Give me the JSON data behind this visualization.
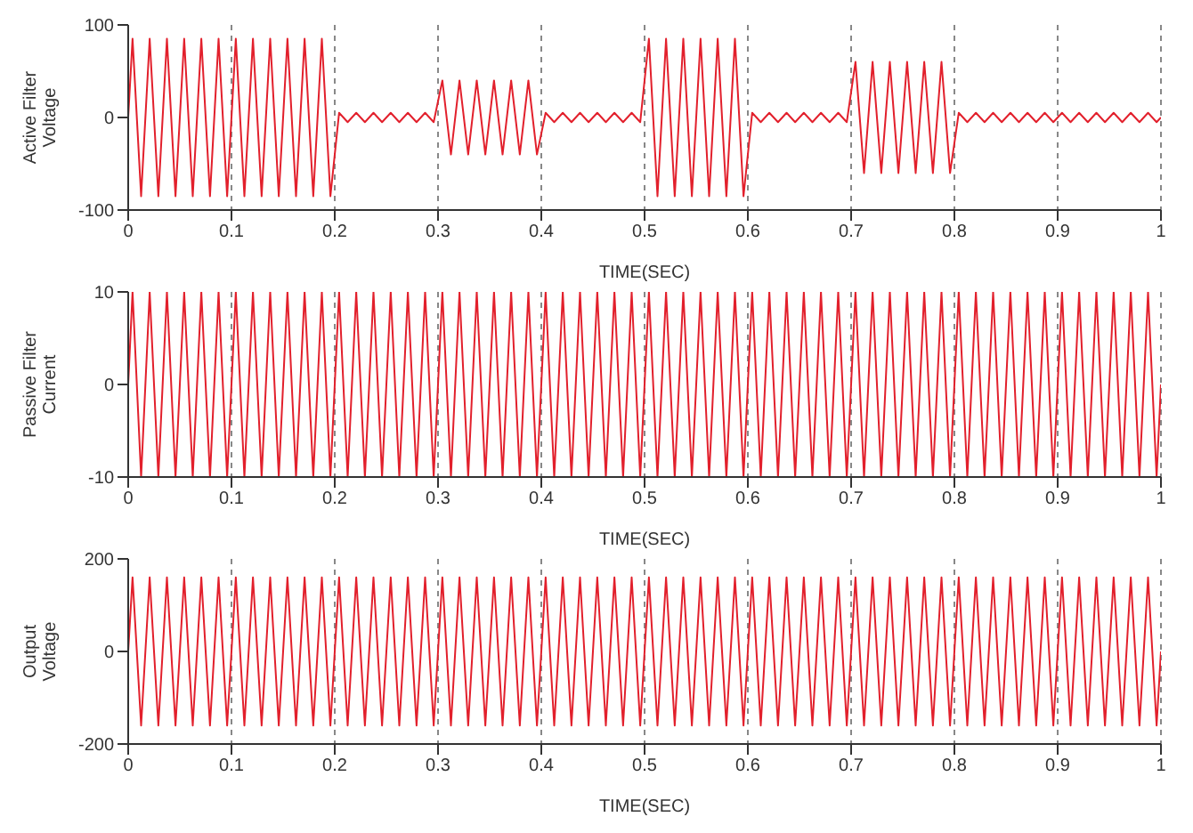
{
  "chart_data": [
    {
      "type": "line",
      "ylabel": "Active Filter Voltage",
      "xlabel": "TIME(SEC)",
      "color": "#e2202c",
      "grid": "x",
      "xlim": [
        0,
        1
      ],
      "xticks": [
        0,
        0.1,
        0.2,
        0.3,
        0.4,
        0.5,
        0.6,
        0.7,
        0.8,
        0.9,
        1
      ],
      "ylim": [
        -100,
        100
      ],
      "yticks": [
        -100,
        0,
        100
      ],
      "x": [
        0,
        0.0042,
        0.0125,
        0.0208,
        0.0292,
        0.0375,
        0.0458,
        0.0542,
        0.0625,
        0.0708,
        0.0792,
        0.0875,
        0.0958,
        0.1042,
        0.1125,
        0.1208,
        0.1292,
        0.1375,
        0.1458,
        0.1542,
        0.1625,
        0.1708,
        0.1792,
        0.1875,
        0.1958,
        0.2042,
        0.2125,
        0.2208,
        0.2292,
        0.2375,
        0.2458,
        0.2542,
        0.2625,
        0.2708,
        0.2792,
        0.2875,
        0.2958,
        0.3042,
        0.3125,
        0.3208,
        0.3292,
        0.3375,
        0.3458,
        0.3542,
        0.3625,
        0.3708,
        0.3792,
        0.3875,
        0.3958,
        0.4042,
        0.4125,
        0.4208,
        0.4292,
        0.4375,
        0.4458,
        0.4542,
        0.4625,
        0.4708,
        0.4792,
        0.4875,
        0.4958,
        0.5042,
        0.5125,
        0.5208,
        0.5292,
        0.5375,
        0.5458,
        0.5542,
        0.5625,
        0.5708,
        0.5792,
        0.5875,
        0.5958,
        0.6042,
        0.6125,
        0.6208,
        0.6292,
        0.6375,
        0.6458,
        0.6542,
        0.6625,
        0.6708,
        0.6792,
        0.6875,
        0.6958,
        0.7042,
        0.7125,
        0.7208,
        0.7292,
        0.7375,
        0.7458,
        0.7542,
        0.7625,
        0.7708,
        0.7792,
        0.7875,
        0.7958,
        0.8042,
        0.8125,
        0.8208,
        0.8292,
        0.8375,
        0.8458,
        0.8542,
        0.8625,
        0.8708,
        0.8792,
        0.8875,
        0.8958,
        0.9042,
        0.9125,
        0.9208,
        0.9292,
        0.9375,
        0.9458,
        0.9542,
        0.9625,
        0.9708,
        0.9792,
        0.9875,
        0.9958,
        1
      ],
      "values": [
        0,
        85,
        -85,
        85,
        -85,
        85,
        -85,
        85,
        -85,
        85,
        -85,
        85,
        -85,
        85,
        -85,
        85,
        -85,
        85,
        -85,
        85,
        -85,
        85,
        -85,
        85,
        -85,
        5,
        -5,
        5,
        -5,
        5,
        -5,
        5,
        -5,
        5,
        -5,
        5,
        -5,
        40,
        -40,
        40,
        -40,
        40,
        -40,
        40,
        -40,
        40,
        -40,
        40,
        -40,
        5,
        -5,
        5,
        -5,
        5,
        -5,
        5,
        -5,
        5,
        -5,
        5,
        -5,
        85,
        -85,
        85,
        -85,
        85,
        -85,
        85,
        -85,
        85,
        -85,
        85,
        -85,
        5,
        -5,
        5,
        -5,
        5,
        -5,
        5,
        -5,
        5,
        -5,
        5,
        -5,
        60,
        -60,
        60,
        -60,
        60,
        -60,
        60,
        -60,
        60,
        -60,
        60,
        -60,
        5,
        -5,
        5,
        -5,
        5,
        -5,
        5,
        -5,
        5,
        -5,
        5,
        -5,
        5,
        -5,
        5,
        -5,
        5,
        -5,
        5,
        -5,
        5,
        -5,
        5,
        -5,
        0
      ]
    },
    {
      "type": "line",
      "ylabel": "Passive Filter Current",
      "xlabel": "TIME(SEC)",
      "color": "#e2202c",
      "grid": "x",
      "xlim": [
        0,
        1
      ],
      "xticks": [
        0,
        0.1,
        0.2,
        0.3,
        0.4,
        0.5,
        0.6,
        0.7,
        0.8,
        0.9,
        1
      ],
      "ylim": [
        -10,
        10
      ],
      "yticks": [
        -10,
        0,
        10
      ],
      "x": [
        0,
        0.0042,
        0.0125,
        0.0208,
        0.0292,
        0.0375,
        0.0458,
        0.0542,
        0.0625,
        0.0708,
        0.0792,
        0.0875,
        0.0958,
        0.1042,
        0.1125,
        0.1208,
        0.1292,
        0.1375,
        0.1458,
        0.1542,
        0.1625,
        0.1708,
        0.1792,
        0.1875,
        0.1958,
        0.2042,
        0.2125,
        0.2208,
        0.2292,
        0.2375,
        0.2458,
        0.2542,
        0.2625,
        0.2708,
        0.2792,
        0.2875,
        0.2958,
        0.3042,
        0.3125,
        0.3208,
        0.3292,
        0.3375,
        0.3458,
        0.3542,
        0.3625,
        0.3708,
        0.3792,
        0.3875,
        0.3958,
        0.4042,
        0.4125,
        0.4208,
        0.4292,
        0.4375,
        0.4458,
        0.4542,
        0.4625,
        0.4708,
        0.4792,
        0.4875,
        0.4958,
        0.5042,
        0.5125,
        0.5208,
        0.5292,
        0.5375,
        0.5458,
        0.5542,
        0.5625,
        0.5708,
        0.5792,
        0.5875,
        0.5958,
        0.6042,
        0.6125,
        0.6208,
        0.6292,
        0.6375,
        0.6458,
        0.6542,
        0.6625,
        0.6708,
        0.6792,
        0.6875,
        0.6958,
        0.7042,
        0.7125,
        0.7208,
        0.7292,
        0.7375,
        0.7458,
        0.7542,
        0.7625,
        0.7708,
        0.7792,
        0.7875,
        0.7958,
        0.8042,
        0.8125,
        0.8208,
        0.8292,
        0.8375,
        0.8458,
        0.8542,
        0.8625,
        0.8708,
        0.8792,
        0.8875,
        0.8958,
        0.9042,
        0.9125,
        0.9208,
        0.9292,
        0.9375,
        0.9458,
        0.9542,
        0.9625,
        0.9708,
        0.9792,
        0.9875,
        0.9958,
        1
      ],
      "values": [
        0,
        10,
        -10,
        10,
        -10,
        10,
        -10,
        10,
        -10,
        10,
        -10,
        10,
        -10,
        10,
        -10,
        10,
        -10,
        10,
        -10,
        10,
        -10,
        10,
        -10,
        10,
        -10,
        10,
        -10,
        10,
        -10,
        10,
        -10,
        10,
        -10,
        10,
        -10,
        10,
        -10,
        10,
        -10,
        10,
        -10,
        10,
        -10,
        10,
        -10,
        10,
        -10,
        10,
        -10,
        10,
        -10,
        10,
        -10,
        10,
        -10,
        10,
        -10,
        10,
        -10,
        10,
        -10,
        10,
        -10,
        10,
        -10,
        10,
        -10,
        10,
        -10,
        10,
        -10,
        10,
        -10,
        10,
        -10,
        10,
        -10,
        10,
        -10,
        10,
        -10,
        10,
        -10,
        10,
        -10,
        10,
        -10,
        10,
        -10,
        10,
        -10,
        10,
        -10,
        10,
        -10,
        10,
        -10,
        10,
        -10,
        10,
        -10,
        10,
        -10,
        10,
        -10,
        10,
        -10,
        10,
        -10,
        10,
        -10,
        10,
        -10,
        10,
        -10,
        10,
        -10,
        10,
        -10,
        10,
        -10,
        0
      ]
    },
    {
      "type": "line",
      "ylabel": "Output Voltage",
      "xlabel": "TIME(SEC)",
      "color": "#e2202c",
      "grid": "x",
      "xlim": [
        0,
        1
      ],
      "xticks": [
        0,
        0.1,
        0.2,
        0.3,
        0.4,
        0.5,
        0.6,
        0.7,
        0.8,
        0.9,
        1
      ],
      "ylim": [
        -200,
        200
      ],
      "yticks": [
        -200,
        0,
        200
      ],
      "x": [
        0,
        0.0042,
        0.0125,
        0.0208,
        0.0292,
        0.0375,
        0.0458,
        0.0542,
        0.0625,
        0.0708,
        0.0792,
        0.0875,
        0.0958,
        0.1042,
        0.1125,
        0.1208,
        0.1292,
        0.1375,
        0.1458,
        0.1542,
        0.1625,
        0.1708,
        0.1792,
        0.1875,
        0.1958,
        0.2042,
        0.2125,
        0.2208,
        0.2292,
        0.2375,
        0.2458,
        0.2542,
        0.2625,
        0.2708,
        0.2792,
        0.2875,
        0.2958,
        0.3042,
        0.3125,
        0.3208,
        0.3292,
        0.3375,
        0.3458,
        0.3542,
        0.3625,
        0.3708,
        0.3792,
        0.3875,
        0.3958,
        0.4042,
        0.4125,
        0.4208,
        0.4292,
        0.4375,
        0.4458,
        0.4542,
        0.4625,
        0.4708,
        0.4792,
        0.4875,
        0.4958,
        0.5042,
        0.5125,
        0.5208,
        0.5292,
        0.5375,
        0.5458,
        0.5542,
        0.5625,
        0.5708,
        0.5792,
        0.5875,
        0.5958,
        0.6042,
        0.6125,
        0.6208,
        0.6292,
        0.6375,
        0.6458,
        0.6542,
        0.6625,
        0.6708,
        0.6792,
        0.6875,
        0.6958,
        0.7042,
        0.7125,
        0.7208,
        0.7292,
        0.7375,
        0.7458,
        0.7542,
        0.7625,
        0.7708,
        0.7792,
        0.7875,
        0.7958,
        0.8042,
        0.8125,
        0.8208,
        0.8292,
        0.8375,
        0.8458,
        0.8542,
        0.8625,
        0.8708,
        0.8792,
        0.8875,
        0.8958,
        0.9042,
        0.9125,
        0.9208,
        0.9292,
        0.9375,
        0.9458,
        0.9542,
        0.9625,
        0.9708,
        0.9792,
        0.9875,
        0.9958,
        1
      ],
      "values": [
        0,
        160,
        -160,
        160,
        -160,
        160,
        -160,
        160,
        -160,
        160,
        -160,
        160,
        -160,
        160,
        -160,
        160,
        -160,
        160,
        -160,
        160,
        -160,
        160,
        -160,
        160,
        -160,
        160,
        -160,
        160,
        -160,
        160,
        -160,
        160,
        -160,
        160,
        -160,
        160,
        -160,
        160,
        -160,
        160,
        -160,
        160,
        -160,
        160,
        -160,
        160,
        -160,
        160,
        -160,
        160,
        -160,
        160,
        -160,
        160,
        -160,
        160,
        -160,
        160,
        -160,
        160,
        -160,
        160,
        -160,
        160,
        -160,
        160,
        -160,
        160,
        -160,
        160,
        -160,
        160,
        -160,
        160,
        -160,
        160,
        -160,
        160,
        -160,
        160,
        -160,
        160,
        -160,
        160,
        -160,
        160,
        -160,
        160,
        -160,
        160,
        -160,
        160,
        -160,
        160,
        -160,
        160,
        -160,
        160,
        -160,
        160,
        -160,
        160,
        -160,
        160,
        -160,
        160,
        -160,
        160,
        -160,
        160,
        -160,
        160,
        -160,
        160,
        -160,
        160,
        -160,
        160,
        -160,
        160,
        -160,
        0
      ]
    }
  ]
}
